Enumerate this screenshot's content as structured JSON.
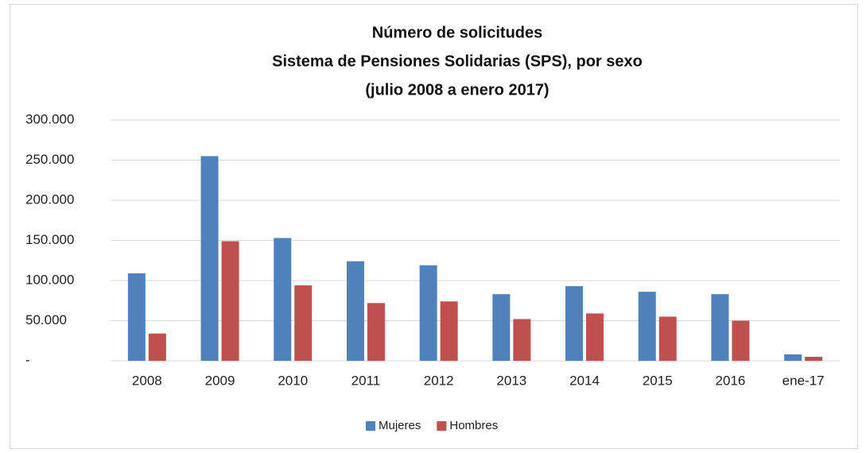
{
  "chart_data": {
    "type": "bar",
    "title": [
      "Número de solicitudes",
      "Sistema de Pensiones Solidarias (SPS), por sexo",
      "(julio 2008 a enero 2017)"
    ],
    "categories": [
      "2008",
      "2009",
      "2010",
      "2011",
      "2012",
      "2013",
      "2014",
      "2015",
      "2016",
      "ene-17"
    ],
    "series": [
      {
        "name": "Mujeres",
        "color": "#4f81bd",
        "values": [
          109000,
          255000,
          153000,
          124000,
          119000,
          83000,
          93000,
          86000,
          83000,
          8000
        ]
      },
      {
        "name": "Hombres",
        "color": "#c0504d",
        "values": [
          34000,
          149000,
          94000,
          72000,
          74000,
          52000,
          59000,
          55000,
          50000,
          5000
        ]
      }
    ],
    "ylim": [
      0,
      300000
    ],
    "yticks": [
      {
        "value": 0,
        "label": "-"
      },
      {
        "value": 50000,
        "label": "50.000"
      },
      {
        "value": 100000,
        "label": "100.000"
      },
      {
        "value": 150000,
        "label": "150.000"
      },
      {
        "value": 200000,
        "label": "200.000"
      },
      {
        "value": 250000,
        "label": "250.000"
      },
      {
        "value": 300000,
        "label": "300.000"
      }
    ],
    "grid": true,
    "legend": "bottom"
  }
}
